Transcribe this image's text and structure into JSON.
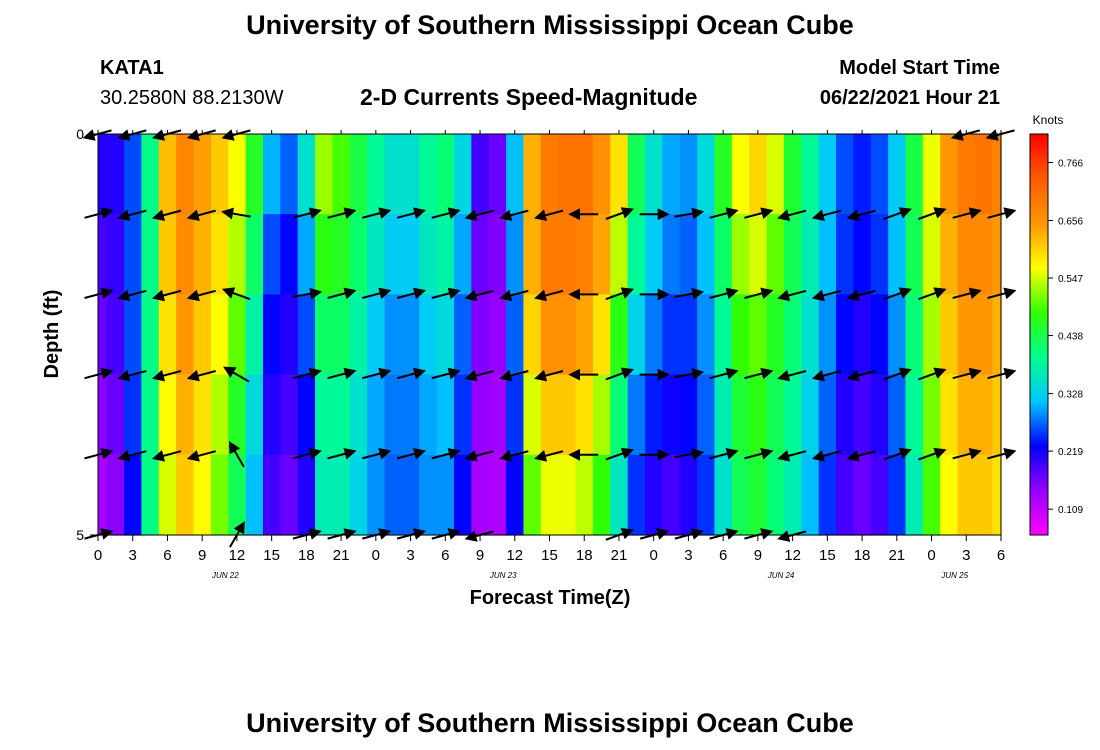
{
  "header": {
    "title": "University of Southern Mississippi Ocean Cube",
    "station_id": "KATA1",
    "station_coords": "30.2580N  88.2130W",
    "plot_title": "2-D Currents Speed-Magnitude",
    "model_start_label": "Model Start Time",
    "model_start_time": "06/22/2021 Hour 21"
  },
  "footer": {
    "title": "University of Southern Mississippi Ocean Cube"
  },
  "chart_data": {
    "type": "heatmap",
    "title": "2-D Currents Speed-Magnitude",
    "xlabel": "Forecast Time(Z)",
    "ylabel": "Depth (ft)",
    "ylim": [
      0,
      5
    ],
    "y_ticks": [
      "0",
      "5"
    ],
    "x_tick_labels": [
      "0",
      "3",
      "6",
      "9",
      "12",
      "15",
      "18",
      "21",
      "0",
      "3",
      "6",
      "9",
      "12",
      "15",
      "18",
      "21",
      "0",
      "3",
      "6",
      "9",
      "12",
      "15",
      "18",
      "21",
      "0",
      "3",
      "6"
    ],
    "date_labels": [
      {
        "label": "JUN 22",
        "hour": 11
      },
      {
        "label": "JUN 23",
        "hour": 35
      },
      {
        "label": "JUN 24",
        "hour": 59
      },
      {
        "label": "JUN 25",
        "hour": 74
      }
    ],
    "hours": [
      0,
      1.5,
      3,
      4.5,
      6,
      7.5,
      9,
      10.5,
      12,
      13.5,
      15,
      16.5,
      18,
      19.5,
      21,
      22.5,
      24,
      25.5,
      27,
      28.5,
      30,
      31.5,
      33,
      34.5,
      36,
      37.5,
      39,
      40.5,
      42,
      43.5,
      45,
      46.5,
      48,
      49.5,
      51,
      52.5,
      54,
      55.5,
      57,
      58.5,
      60,
      61.5,
      63,
      64.5,
      66,
      67.5,
      69,
      70.5,
      72,
      73.5,
      75,
      76.5,
      78
    ],
    "depth_rows": [
      "0",
      "1",
      "2",
      "3",
      "4",
      "5"
    ],
    "speed": [
      [
        0.22,
        0.22,
        0.26,
        0.4,
        0.62,
        0.68,
        0.65,
        0.62,
        0.58,
        0.48,
        0.33,
        0.3,
        0.38,
        0.55,
        0.5,
        0.45,
        0.4,
        0.36,
        0.36,
        0.4,
        0.42,
        0.35,
        0.2,
        0.18,
        0.32,
        0.62,
        0.68,
        0.7,
        0.7,
        0.66,
        0.6,
        0.44,
        0.36,
        0.3,
        0.3,
        0.36,
        0.48,
        0.58,
        0.62,
        0.58,
        0.46,
        0.4,
        0.32,
        0.26,
        0.24,
        0.26,
        0.32,
        0.44,
        0.56,
        0.66,
        0.7,
        0.72,
        0.7
      ],
      [
        0.2,
        0.2,
        0.26,
        0.4,
        0.62,
        0.67,
        0.64,
        0.6,
        0.55,
        0.44,
        0.28,
        0.24,
        0.32,
        0.5,
        0.48,
        0.43,
        0.38,
        0.34,
        0.34,
        0.38,
        0.4,
        0.32,
        0.18,
        0.16,
        0.3,
        0.64,
        0.7,
        0.7,
        0.7,
        0.66,
        0.58,
        0.42,
        0.34,
        0.3,
        0.28,
        0.32,
        0.44,
        0.55,
        0.58,
        0.52,
        0.44,
        0.38,
        0.32,
        0.26,
        0.24,
        0.26,
        0.32,
        0.44,
        0.56,
        0.64,
        0.68,
        0.68,
        0.66
      ],
      [
        0.18,
        0.2,
        0.26,
        0.4,
        0.6,
        0.66,
        0.62,
        0.58,
        0.52,
        0.4,
        0.24,
        0.22,
        0.28,
        0.44,
        0.44,
        0.4,
        0.34,
        0.3,
        0.3,
        0.34,
        0.36,
        0.28,
        0.16,
        0.15,
        0.28,
        0.62,
        0.68,
        0.68,
        0.66,
        0.62,
        0.5,
        0.36,
        0.3,
        0.26,
        0.26,
        0.3,
        0.4,
        0.5,
        0.52,
        0.48,
        0.42,
        0.36,
        0.3,
        0.24,
        0.22,
        0.24,
        0.3,
        0.42,
        0.54,
        0.62,
        0.66,
        0.66,
        0.64
      ],
      [
        0.16,
        0.18,
        0.26,
        0.4,
        0.58,
        0.64,
        0.6,
        0.55,
        0.48,
        0.36,
        0.22,
        0.2,
        0.24,
        0.4,
        0.4,
        0.36,
        0.3,
        0.28,
        0.28,
        0.3,
        0.32,
        0.26,
        0.15,
        0.14,
        0.26,
        0.58,
        0.64,
        0.64,
        0.62,
        0.56,
        0.44,
        0.3,
        0.26,
        0.24,
        0.24,
        0.28,
        0.38,
        0.46,
        0.48,
        0.44,
        0.4,
        0.34,
        0.28,
        0.22,
        0.2,
        0.22,
        0.28,
        0.4,
        0.52,
        0.6,
        0.64,
        0.64,
        0.62
      ],
      [
        0.14,
        0.16,
        0.24,
        0.4,
        0.56,
        0.62,
        0.58,
        0.52,
        0.44,
        0.32,
        0.2,
        0.18,
        0.22,
        0.38,
        0.38,
        0.34,
        0.3,
        0.28,
        0.28,
        0.3,
        0.3,
        0.24,
        0.14,
        0.13,
        0.24,
        0.52,
        0.58,
        0.58,
        0.56,
        0.5,
        0.38,
        0.26,
        0.22,
        0.2,
        0.22,
        0.26,
        0.36,
        0.44,
        0.46,
        0.42,
        0.38,
        0.32,
        0.26,
        0.2,
        0.18,
        0.2,
        0.26,
        0.38,
        0.5,
        0.58,
        0.62,
        0.62,
        0.6
      ],
      [
        0.12,
        0.14,
        0.22,
        0.4,
        0.54,
        0.6,
        0.56,
        0.5,
        0.42,
        0.3,
        0.18,
        0.16,
        0.2,
        0.36,
        0.36,
        0.32,
        0.28,
        0.26,
        0.26,
        0.28,
        0.28,
        0.22,
        0.12,
        0.12,
        0.22,
        0.48,
        0.54,
        0.54,
        0.52,
        0.46,
        0.34,
        0.24,
        0.2,
        0.18,
        0.2,
        0.24,
        0.34,
        0.42,
        0.44,
        0.4,
        0.36,
        0.3,
        0.24,
        0.18,
        0.16,
        0.18,
        0.24,
        0.36,
        0.48,
        0.56,
        0.6,
        0.6,
        0.58
      ]
    ],
    "arrow_hours": [
      0,
      3,
      6,
      9,
      12,
      15,
      18,
      21,
      24,
      27,
      30,
      33,
      36,
      39,
      42,
      45,
      48,
      51,
      54,
      57,
      60,
      63,
      66,
      69,
      72,
      75,
      78
    ],
    "arrows_dir_deg": [
      [
        195,
        195,
        195,
        195,
        195,
        null,
        null,
        null,
        null,
        null,
        null,
        null,
        null,
        null,
        null,
        null,
        null,
        null,
        null,
        null,
        null,
        null,
        null,
        null,
        null,
        195,
        195
      ],
      [
        15,
        195,
        195,
        195,
        170,
        null,
        15,
        15,
        15,
        15,
        15,
        195,
        195,
        195,
        180,
        20,
        0,
        10,
        15,
        15,
        195,
        195,
        195,
        20,
        20,
        15,
        15
      ],
      [
        15,
        195,
        195,
        195,
        160,
        null,
        10,
        15,
        15,
        15,
        15,
        195,
        195,
        195,
        180,
        20,
        0,
        10,
        15,
        15,
        195,
        195,
        195,
        20,
        20,
        15,
        15
      ],
      [
        15,
        195,
        195,
        195,
        150,
        null,
        15,
        15,
        15,
        15,
        15,
        195,
        195,
        195,
        180,
        20,
        0,
        10,
        15,
        15,
        195,
        195,
        195,
        20,
        20,
        15,
        15
      ],
      [
        15,
        195,
        195,
        195,
        120,
        null,
        15,
        15,
        15,
        15,
        15,
        195,
        195,
        195,
        180,
        20,
        0,
        10,
        15,
        15,
        195,
        195,
        195,
        20,
        20,
        15,
        15
      ],
      [
        15,
        null,
        null,
        null,
        60,
        null,
        15,
        15,
        15,
        15,
        15,
        195,
        null,
        null,
        null,
        20,
        15,
        15,
        15,
        15,
        195,
        null,
        null,
        null,
        null,
        null,
        null
      ]
    ],
    "colorbar": {
      "label": "Knots",
      "ticks": [
        "0.766",
        "0.656",
        "0.547",
        "0.438",
        "0.328",
        "0.219",
        "0.109"
      ],
      "vmin": 0.06,
      "vmax": 0.82,
      "colors": [
        "#ff00ff",
        "#9600ff",
        "#0000ff",
        "#00c8ff",
        "#00ff8c",
        "#32ff00",
        "#ffff00",
        "#ff9600",
        "#ff5a00",
        "#ff0000"
      ]
    }
  }
}
